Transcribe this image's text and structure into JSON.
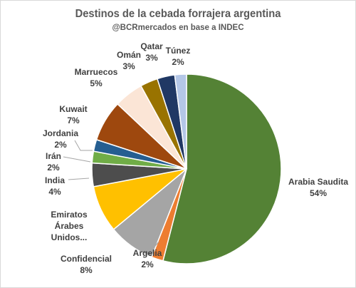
{
  "chart_data": {
    "type": "pie",
    "title": "Destinos de la cebada forrajera argentina",
    "subtitle": "@BCRmercados en base a INDEC",
    "unit": "%",
    "slices": [
      {
        "label": "Arabia Saudita",
        "lines": [
          "Arabia Saudita"
        ],
        "value": 54,
        "value_label": "54%",
        "color": "#548235"
      },
      {
        "label": "Argelia",
        "lines": [
          "Argelia"
        ],
        "value": 2,
        "value_label": "2%",
        "color": "#ed7d31"
      },
      {
        "label": "Confidencial",
        "lines": [
          "Confidencial"
        ],
        "value": 8,
        "value_label": "8%",
        "color": "#a5a5a5"
      },
      {
        "label": "Emiratos Árabes Unidos...",
        "lines": [
          "Emiratos",
          "Árabes",
          "Unidos..."
        ],
        "value": 8,
        "value_label": "",
        "color": "#ffc000"
      },
      {
        "label": "India",
        "lines": [
          "India"
        ],
        "value": 4,
        "value_label": "4%",
        "color": "#4d4d4d"
      },
      {
        "label": "Irán",
        "lines": [
          "Irán"
        ],
        "value": 2,
        "value_label": "2%",
        "color": "#70ad47"
      },
      {
        "label": "Jordania",
        "lines": [
          "Jordania"
        ],
        "value": 2,
        "value_label": "2%",
        "color": "#255e91"
      },
      {
        "label": "Kuwait",
        "lines": [
          "Kuwait"
        ],
        "value": 7,
        "value_label": "7%",
        "color": "#9e480e"
      },
      {
        "label": "Marruecos",
        "lines": [
          "Marruecos"
        ],
        "value": 5,
        "value_label": "5%",
        "color": "#fbe5d6"
      },
      {
        "label": "Omán",
        "lines": [
          "Omán"
        ],
        "value": 3,
        "value_label": "3%",
        "color": "#997300"
      },
      {
        "label": "Qatar",
        "lines": [
          "Qatar"
        ],
        "value": 3,
        "value_label": "3%",
        "color": "#203864"
      },
      {
        "label": "Túnez",
        "lines": [
          "Túnez"
        ],
        "value": 2,
        "value_label": "2%",
        "color": "#b4c7e7"
      }
    ]
  }
}
